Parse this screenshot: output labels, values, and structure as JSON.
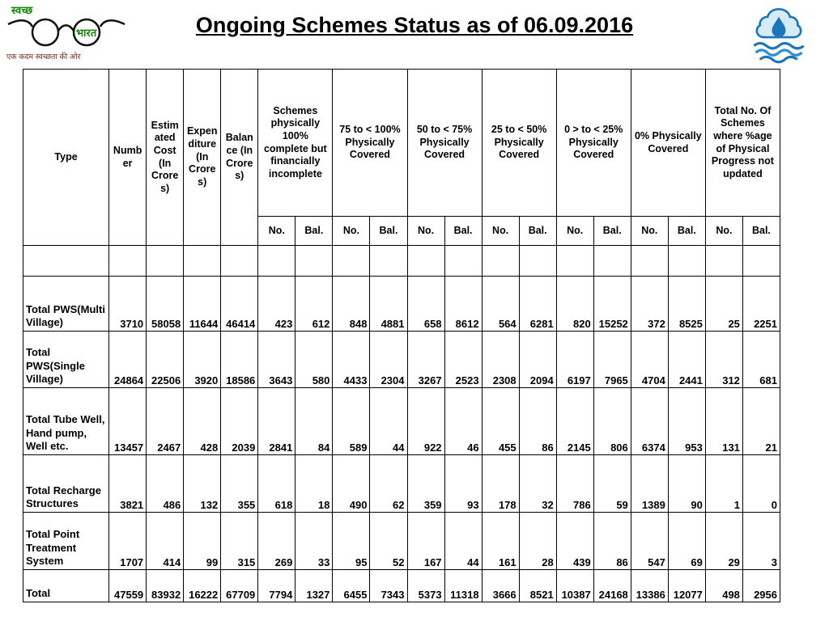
{
  "title": "Ongoing Schemes Status as of 06.09.2016",
  "logos": {
    "swachh_bharat": {
      "word1": "स्वच्छ",
      "word2": "भारत",
      "tagline": "एक कदम स्वच्छता की ओर"
    }
  },
  "table": {
    "col_headers": [
      "Type",
      "Number",
      "Estimated Cost (In Crores)",
      "Expenditure (In Crores)",
      "Balance (In Crores)"
    ],
    "group_headers": [
      "Schemes physically 100% complete but financially incomplete",
      "75 to < 100% Physically Covered",
      "50 to < 75% Physically Covered",
      "25 to < 50% Physically Covered",
      "0 > to < 25% Physically Covered",
      "0% Physically Covered",
      "Total No. Of Schemes where %age of Physical Progress not updated"
    ],
    "sub_header_no": "No.",
    "sub_header_bal": "Bal.",
    "rows": [
      {
        "label": "Total PWS(Multi Village)",
        "values": [
          "3710",
          "58058",
          "11644",
          "46414",
          "423",
          "612",
          "848",
          "4881",
          "658",
          "8612",
          "564",
          "6281",
          "820",
          "15252",
          "372",
          "8525",
          "25",
          "2251"
        ]
      },
      {
        "label": "Total PWS(Single Village)",
        "values": [
          "24864",
          "22506",
          "3920",
          "18586",
          "3643",
          "580",
          "4433",
          "2304",
          "3267",
          "2523",
          "2308",
          "2094",
          "6197",
          "7965",
          "4704",
          "2441",
          "312",
          "681"
        ]
      },
      {
        "label": "Total Tube Well, Hand pump, Well etc.",
        "values": [
          "13457",
          "2467",
          "428",
          "2039",
          "2841",
          "84",
          "589",
          "44",
          "922",
          "46",
          "455",
          "86",
          "2145",
          "806",
          "6374",
          "953",
          "131",
          "21"
        ]
      },
      {
        "label": "Total Recharge Structures",
        "values": [
          "3821",
          "486",
          "132",
          "355",
          "618",
          "18",
          "490",
          "62",
          "359",
          "93",
          "178",
          "32",
          "786",
          "59",
          "1389",
          "90",
          "1",
          "0"
        ]
      },
      {
        "label": "Total Point Treatment System",
        "values": [
          "1707",
          "414",
          "99",
          "315",
          "269",
          "33",
          "95",
          "52",
          "167",
          "44",
          "161",
          "28",
          "439",
          "86",
          "547",
          "69",
          "29",
          "3"
        ]
      },
      {
        "label": "Total",
        "values": [
          "47559",
          "83932",
          "16222",
          "67709",
          "7794",
          "1327",
          "6455",
          "7343",
          "5373",
          "11318",
          "3666",
          "8521",
          "10387",
          "24168",
          "13386",
          "12077",
          "498",
          "2956"
        ]
      }
    ]
  }
}
